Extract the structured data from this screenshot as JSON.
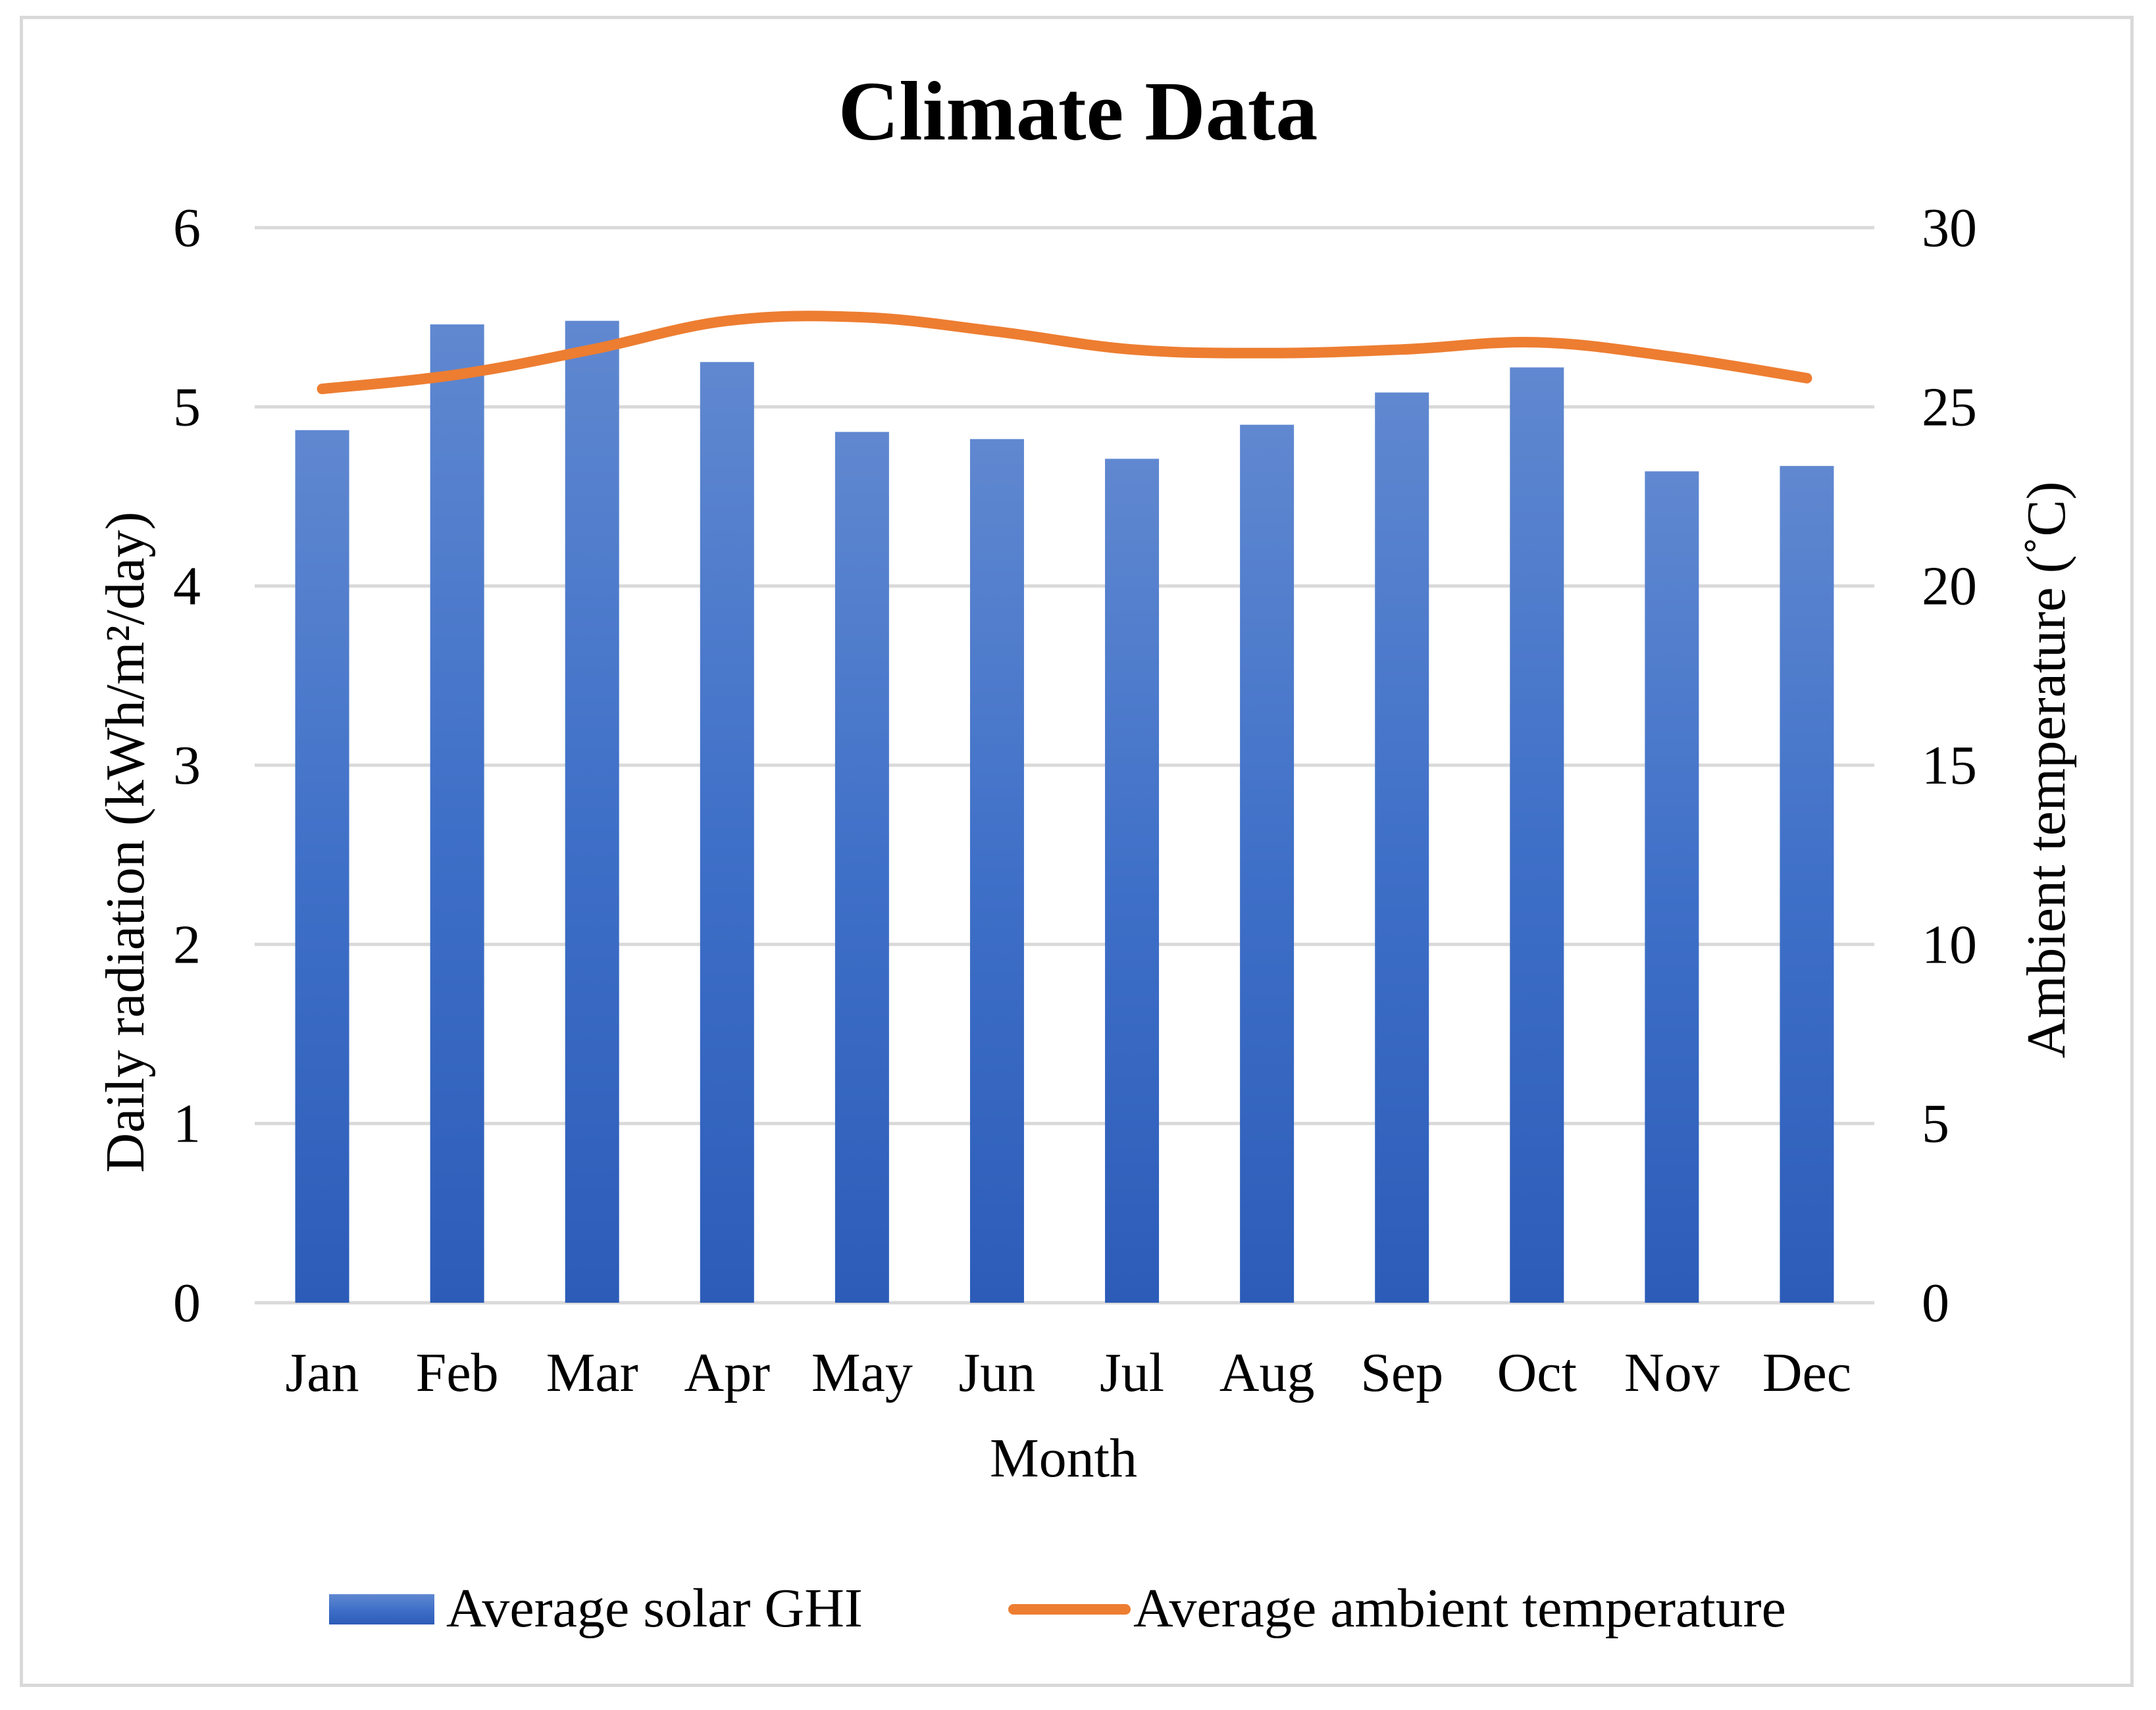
{
  "chart_data": {
    "type": "bar",
    "title": "Climate Data",
    "xlabel": "Month",
    "ylabel": "Daily radiation (kWh/m²/day)",
    "y2label": "Ambient temperature (˚C)",
    "categories": [
      "Jan",
      "Feb",
      "Mar",
      "Apr",
      "May",
      "Jun",
      "Jul",
      "Aug",
      "Sep",
      "Oct",
      "Nov",
      "Dec"
    ],
    "ylim": [
      0,
      6
    ],
    "y2lim": [
      0,
      30
    ],
    "yticks": [
      "0",
      "1",
      "2",
      "3",
      "4",
      "5",
      "6"
    ],
    "y2ticks": [
      "0",
      "5",
      "10",
      "15",
      "20",
      "25",
      "30"
    ],
    "grid": true,
    "legend_position": "bottom",
    "series": [
      {
        "name": "Average solar GHI",
        "type": "bar",
        "axis": "left",
        "color": "#4472c4",
        "values": [
          4.87,
          5.46,
          5.48,
          5.25,
          4.86,
          4.82,
          4.71,
          4.9,
          5.08,
          5.22,
          4.64,
          4.67
        ]
      },
      {
        "name": "Average ambient temperature",
        "type": "line",
        "axis": "right",
        "color": "#ed7d31",
        "values": [
          25.5,
          25.9,
          26.6,
          27.4,
          27.5,
          27.1,
          26.6,
          26.5,
          26.6,
          26.8,
          26.4,
          25.8
        ]
      }
    ]
  }
}
